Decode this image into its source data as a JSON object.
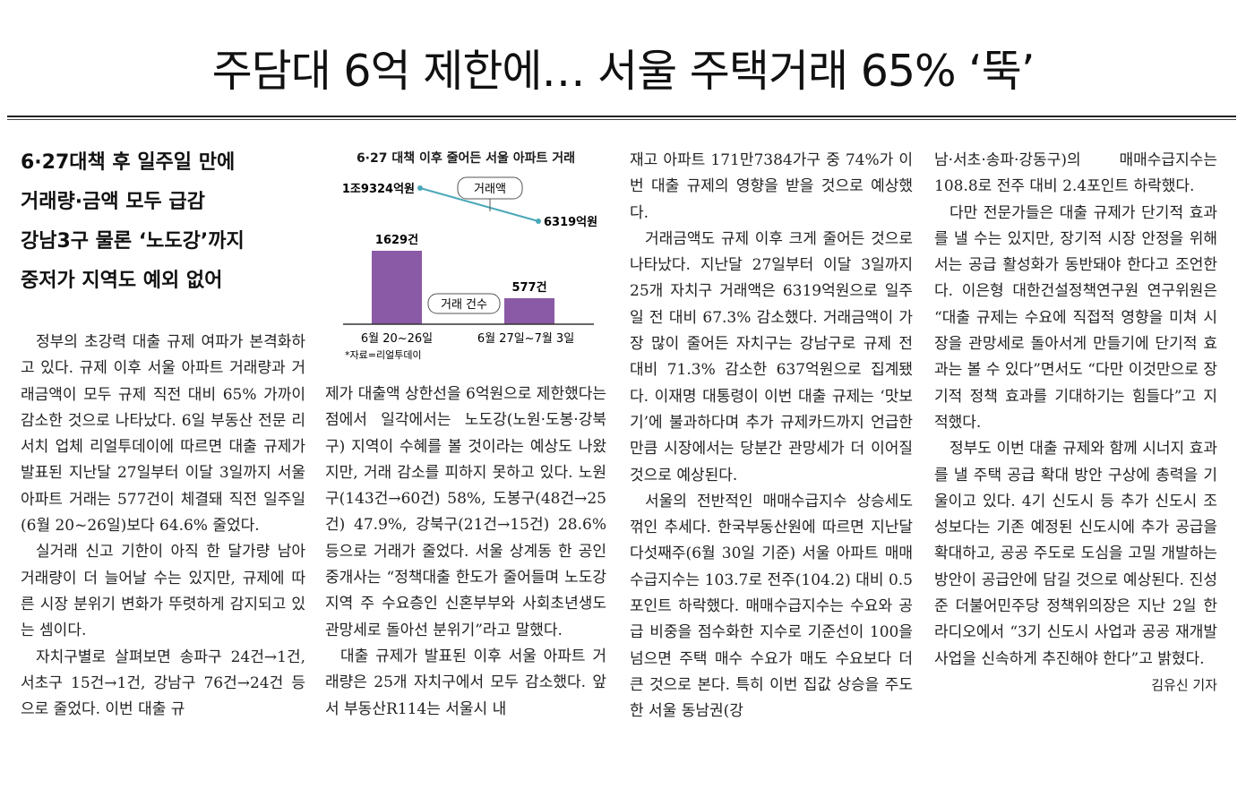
{
  "article": {
    "headline": "주담대 6억 제한에… 서울 주택거래 65% ‘뚝’",
    "subheads": [
      "6·27대책 후 일주일 만에",
      "거래량·금액 모두 급감",
      "강남3구 물론 ‘노도강’까지",
      "중저가 지역도 예외 없어"
    ],
    "columns": [
      [
        "정부의 초강력 대출 규제 여파가 본격화하고 있다. 규제 이후 서울 아파트 거래량과 거래금액이 모두 규제 직전 대비 65% 가까이 감소한 것으로 나타났다. 6일 부동산 전문 리서치 업체 리얼투데이에 따르면 대출 규제가 발표된 지난달 27일부터 이달 3일까지 서울 아파트 거래는 577건이 체결돼 직전 일주일(6월 20~26일)보다 64.6% 줄었다.",
        "실거래 신고 기한이 아직 한 달가량 남아 거래량이 더 늘어날 수는 있지만, 규제에 따른 시장 분위기 변화가 뚜렷하게 감지되고 있는 셈이다.",
        "자치구별로 살펴보면 송파구 24건→1건, 서초구 15건→1건, 강남구 76건→24건 등으로 줄었다. 이번 대출 규"
      ],
      [
        "제가 대출액 상한선을 6억원으로 제한했다는 점에서 일각에서는 노도강(노원·도봉·강북구) 지역이 수혜를 볼 것이라는 예상도 나왔지만, 거래 감소를 피하지 못하고 있다. 노원구(143건→60건) 58%, 도봉구(48건→25건) 47.9%, 강북구(21건→15건) 28.6% 등으로 거래가 줄었다. 서울 상계동 한 공인중개사는 “정책대출 한도가 줄어들며 노도강 지역 주 수요층인 신혼부부와 사회초년생도 관망세로 돌아선 분위기”라고 말했다.",
        "대출 규제가 발표된 이후 서울 아파트 거래량은 25개 자치구에서 모두 감소했다. 앞서 부동산R114는 서울시 내"
      ],
      [
        "재고 아파트 171만7384가구 중 74%가 이번 대출 규제의 영향을 받을 것으로 예상했다.",
        "거래금액도 규제 이후 크게 줄어든 것으로 나타났다. 지난달 27일부터 이달 3일까지 25개 자치구 거래액은 6319억원으로 일주일 전 대비 67.3% 감소했다. 거래금액이 가장 많이 줄어든 자치구는 강남구로 규제 전 대비 71.3% 감소한 637억원으로 집계됐다. 이재명 대통령이 이번 대출 규제는 ‘맛보기’에 불과하다며 추가 규제카드까지 언급한 만큼 시장에서는 당분간 관망세가 더 이어질 것으로 예상된다.",
        "서울의 전반적인 매매수급지수 상승세도 꺾인 추세다. 한국부동산원에 따르면 지난달 다섯째주(6월 30일 기준) 서울 아파트 매매수급지수는 103.7로 전주(104.2) 대비 0.5포인트 하락했다. 매매수급지수는 수요와 공급 비중을 점수화한 지수로 기준선이 100을 넘으면 주택 매수 수요가 매도 수요보다 더 큰 것으로 본다. 특히 이번 집값 상승을 주도한 서울 동남권(강"
      ],
      [
        "남·서초·송파·강동구)의 매매수급지수는 108.8로 전주 대비 2.4포인트 하락했다.",
        "다만 전문가들은 대출 규제가 단기적 효과를 낼 수는 있지만, 장기적 시장 안정을 위해서는 공급 활성화가 동반돼야 한다고 조언한다. 이은형 대한건설정책연구원 연구위원은 “대출 규제는 수요에 직접적 영향을 미쳐 시장을 관망세로 돌아서게 만들기에 단기적 효과는 볼 수 있다”면서도 “다만 이것만으로 장기적 정책 효과를 기대하기는 힘들다”고 지적했다.",
        "정부도 이번 대출 규제와 함께 시너지 효과를 낼 주택 공급 확대 방안 구상에 총력을 기울이고 있다. 4기 신도시 등 추가 신도시 조성보다는 기존 예정된 신도시에 추가 공급을 확대하고, 공공 주도로 도심을 고밀 개발하는 방안이 공급안에 담길 것으로 예상된다. 진성준 더불어민주당 정책위의장은 지난 2일 한 라디오에서 “3기 신도시 사업과 공공 재개발 사업을 신속하게 추진해야 한다”고 밝혔다."
      ]
    ],
    "byline": "김유신 기자"
  },
  "chart_data": {
    "type": "bar",
    "title": "6·27 대책 이후 줄어든 서울 아파트 거래",
    "categories": [
      "6월 20~26일",
      "6월 27일~7월 3일"
    ],
    "series": [
      {
        "name": "거래 건수",
        "values": [
          1629,
          577
        ],
        "labels": [
          "1629건",
          "577건"
        ],
        "color": "#8a5aa6"
      },
      {
        "name": "거래액",
        "values": [
          19324,
          6319
        ],
        "labels": [
          "1조9324억원",
          "6319억원"
        ],
        "color": "#4aa8b8"
      }
    ],
    "source": "*자료=리얼투데이"
  }
}
